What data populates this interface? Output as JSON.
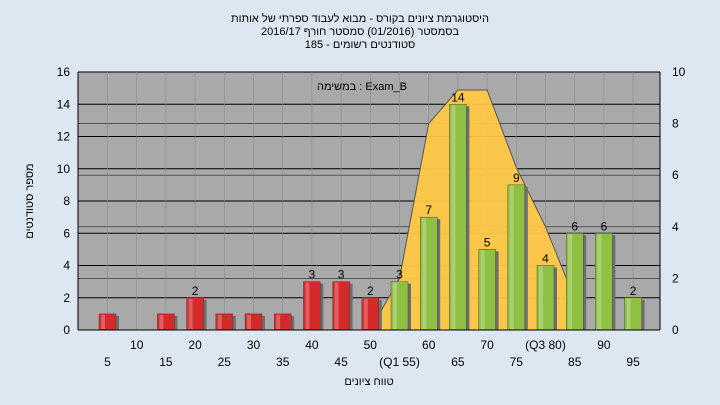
{
  "chart_data": {
    "type": "bar",
    "title": [
      "היסטוגרמת ציונים בקורס - מבוא לעבוד ספרתי של אותות",
      "בסמסטר  (01/2016)  סמסטר חורף 2016/17",
      "סטודנטים רשומים - 185"
    ],
    "annotation": "Exam_B : במשימה",
    "xlabel": "טווח ציונים",
    "ylabel": "מספר סטודנטים",
    "ylim": [
      0,
      16
    ],
    "y_ticks": [
      0,
      2,
      4,
      6,
      8,
      10,
      12,
      14,
      16
    ],
    "y2lim": [
      0,
      10
    ],
    "y2_ticks": [
      0,
      2,
      4,
      6,
      8,
      10
    ],
    "categories": [
      "5",
      "10",
      "15",
      "20",
      "25",
      "30",
      "35",
      "40",
      "45",
      "50",
      "(Q1 55)",
      "60",
      "65",
      "70",
      "75",
      "(Q3 80)",
      "85",
      "90",
      "95"
    ],
    "values": [
      1,
      0,
      1,
      2,
      1,
      1,
      1,
      3,
      3,
      2,
      3,
      7,
      14,
      5,
      9,
      4,
      6,
      6,
      2
    ],
    "value_labels": [
      "",
      "",
      "",
      "2",
      "",
      "",
      "",
      "3",
      "3",
      "2",
      "3",
      "7",
      "14",
      "5",
      "9",
      "4",
      "6",
      "6",
      "2"
    ],
    "distribution_curve": {
      "x": [
        "50",
        "(Q1 55)",
        "60",
        "65",
        "70",
        "75",
        "(Q3 80)",
        "85"
      ],
      "y2": [
        0,
        2,
        8,
        9.3,
        9.3,
        6.3,
        4,
        1.2
      ]
    },
    "colors": {
      "background": "#dde7f1",
      "plot_background": "#a9a9a9",
      "failing_bar": "#d42a2a",
      "passing_bar": "#8fc043",
      "curve_fill": "#ffc846",
      "grid": "#000000"
    },
    "grid": true
  }
}
